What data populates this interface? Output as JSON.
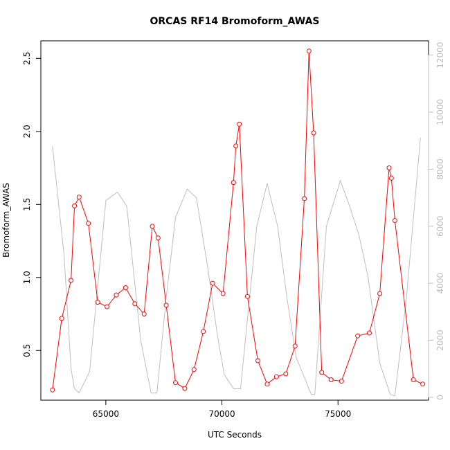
{
  "chart_data": {
    "type": "line",
    "title": "ORCAS RF14 Bromoform_AWAS",
    "xlabel": "UTC Seconds",
    "ylabel": "Bromoform_AWAS",
    "xlim": [
      62200,
      78900
    ],
    "ylim": [
      0.16,
      2.62
    ],
    "y2lim": [
      -100,
      12500
    ],
    "x_ticks": [
      65000,
      70000,
      75000
    ],
    "x_tick_labels": [
      "65000",
      "70000",
      "75000"
    ],
    "y_ticks": [
      0.5,
      1.0,
      1.5,
      2.0,
      2.5
    ],
    "y_tick_labels": [
      "0.5",
      "1.0",
      "1.5",
      "2.0",
      "2.5"
    ],
    "y2_ticks": [
      0,
      2000,
      4000,
      6000,
      8000,
      10000,
      12000
    ],
    "y2_tick_labels": [
      "0",
      "2000",
      "4000",
      "6000",
      "8000",
      "10000",
      "12000"
    ],
    "grid": false,
    "series": [
      {
        "axis": "left",
        "color": "#ff0000",
        "marker": "open-circle",
        "x": [
          62700,
          63100,
          63500,
          63650,
          63850,
          64250,
          64650,
          65050,
          65450,
          65850,
          66250,
          66650,
          67000,
          67250,
          67600,
          68000,
          68400,
          68800,
          69200,
          69600,
          70050,
          70500,
          70600,
          70750,
          71100,
          71550,
          71950,
          72350,
          72750,
          73150,
          73550,
          73750,
          73950,
          74300,
          74700,
          75150,
          75850,
          76350,
          76800,
          77200,
          77300,
          77450,
          78250,
          78650
        ],
        "values": [
          0.23,
          0.72,
          0.98,
          1.49,
          1.55,
          1.37,
          0.83,
          0.8,
          0.88,
          0.93,
          0.82,
          0.75,
          1.35,
          1.27,
          0.81,
          0.28,
          0.24,
          0.37,
          0.63,
          0.96,
          0.89,
          1.65,
          1.9,
          2.05,
          0.87,
          0.43,
          0.27,
          0.32,
          0.34,
          0.53,
          1.54,
          2.55,
          1.99,
          0.35,
          0.3,
          0.29,
          0.6,
          0.62,
          0.89,
          1.75,
          1.68,
          1.39,
          0.3,
          0.27
        ]
      },
      {
        "axis": "right",
        "color": "#bebebe",
        "marker": "none",
        "x": [
          62700,
          63200,
          63500,
          63650,
          63850,
          64300,
          65000,
          65500,
          65900,
          66500,
          66950,
          67200,
          67600,
          68000,
          68500,
          68900,
          69400,
          69800,
          70100,
          70500,
          70800,
          71500,
          71950,
          72400,
          72800,
          73200,
          73700,
          73850,
          74000,
          74500,
          75100,
          75500,
          75900,
          76300,
          76800,
          77250,
          77450,
          77950,
          78550
        ],
        "values": [
          8800,
          5000,
          1000,
          300,
          150,
          900,
          6900,
          7200,
          6700,
          2000,
          150,
          150,
          3500,
          6300,
          7300,
          7000,
          4500,
          2200,
          800,
          300,
          300,
          6000,
          7500,
          6000,
          3500,
          1400,
          400,
          100,
          100,
          6000,
          7600,
          6700,
          5700,
          4200,
          1200,
          100,
          50,
          3500,
          9100
        ]
      }
    ]
  }
}
